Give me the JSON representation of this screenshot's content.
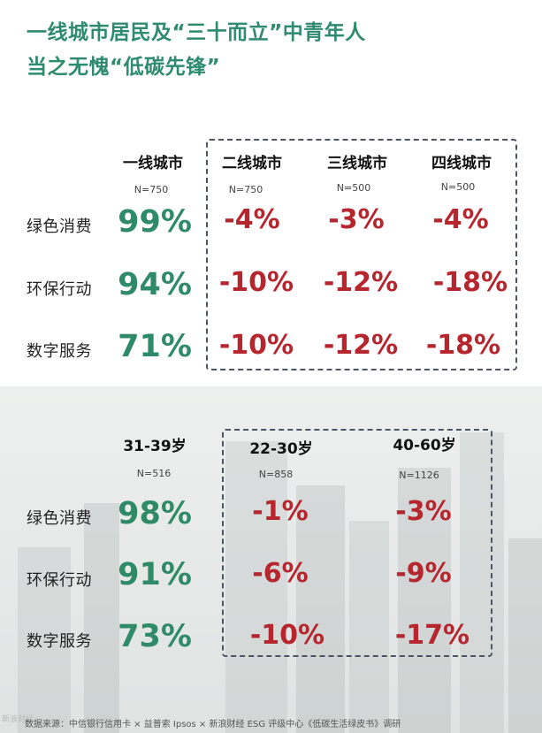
{
  "title_line1": "一线城市居民及“三十而立”中青年人",
  "title_line2": "当之无愧“低碳先锋”",
  "row_labels": [
    "绿色消费",
    "环保行动",
    "数字服务"
  ],
  "chart_data": [
    {
      "type": "table",
      "columns": [
        {
          "header": "一线城市",
          "n": "N=750",
          "values": [
            "99%",
            "94%",
            "71%"
          ]
        },
        {
          "header": "二线城市",
          "n": "N=750",
          "values": [
            "-4%",
            "-10%",
            "-10%"
          ]
        },
        {
          "header": "三线城市",
          "n": "N=500",
          "values": [
            "-3%",
            "-12%",
            "-12%"
          ]
        },
        {
          "header": "四线城市",
          "n": "N=500",
          "values": [
            "-4%",
            "-18%",
            "-18%"
          ]
        }
      ]
    },
    {
      "type": "table",
      "columns": [
        {
          "header": "31-39岁",
          "n": "N=516",
          "values": [
            "98%",
            "91%",
            "73%"
          ]
        },
        {
          "header": "22-30岁",
          "n": "N=858",
          "values": [
            "-1%",
            "-6%",
            "-10%"
          ]
        },
        {
          "header": "40-60岁",
          "n": "N=1126",
          "values": [
            "-3%",
            "-9%",
            "-17%"
          ]
        }
      ]
    }
  ],
  "footer": "数据来源：中信银行信用卡 × 益普索 Ipsos × 新浪财经 ESG 评级中心《低碳生活绿皮书》调研",
  "watermark": "新浪财经",
  "colors": {
    "green": "#2f8a6a",
    "red": "#b5262e",
    "title_green": "#2e8b6e"
  }
}
